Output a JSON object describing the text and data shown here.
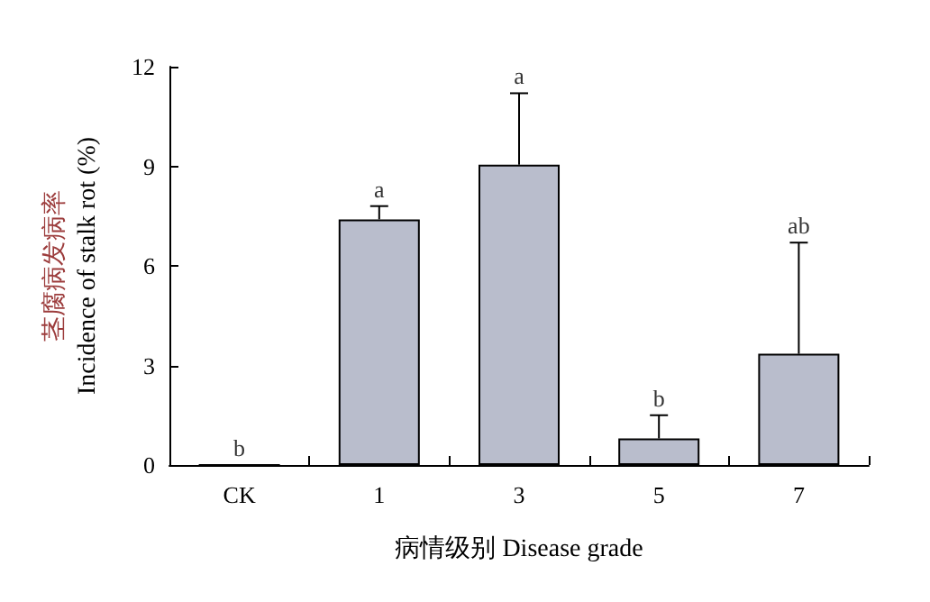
{
  "chart_data": {
    "type": "bar",
    "categories": [
      "CK",
      "1",
      "3",
      "5",
      "7"
    ],
    "values": [
      0,
      7.4,
      9.05,
      0.8,
      3.35
    ],
    "color": "#b9bdcc",
    "errors": [
      null,
      [
        7.4,
        7.8
      ],
      [
        9.05,
        11.2
      ],
      [
        0.8,
        1.5
      ],
      [
        3.35,
        6.7
      ]
    ],
    "ylim": [
      0,
      12
    ],
    "yticks": [
      0,
      3,
      6,
      9,
      12
    ],
    "xlabel": "病情级别 Disease grade",
    "ylabel": [
      "茎腐病发病率",
      "Incidence of stalk rot (%)"
    ],
    "annotations": [
      "b",
      "a",
      "a",
      "b",
      "ab"
    ],
    "grid": false
  }
}
